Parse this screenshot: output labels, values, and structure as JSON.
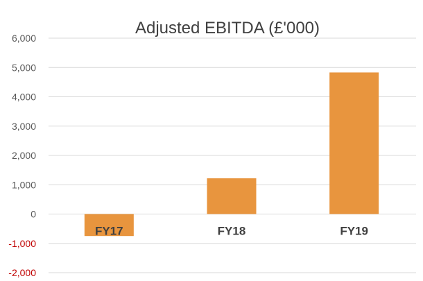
{
  "chart_data": {
    "type": "bar",
    "title": "Adjusted EBITDA (£'000)",
    "xlabel": "",
    "ylabel": "",
    "categories": [
      "FY17",
      "FY18",
      "FY19"
    ],
    "values": [
      -750,
      1220,
      4830
    ],
    "ylim": [
      -2000,
      6000
    ],
    "yticks": [
      6000,
      5000,
      4000,
      3000,
      2000,
      1000,
      0,
      -1000,
      -2000
    ],
    "ytick_labels": [
      "6,000",
      "5,000",
      "4,000",
      "3,000",
      "2,000",
      "1,000",
      "0",
      "-1,000",
      "-2,000"
    ],
    "grid": true,
    "legend": "none",
    "colors": {
      "bar": "#E8953E",
      "positive_tick": "#595959",
      "negative_tick": "#C00000",
      "grid": "#D9D9D9"
    }
  }
}
